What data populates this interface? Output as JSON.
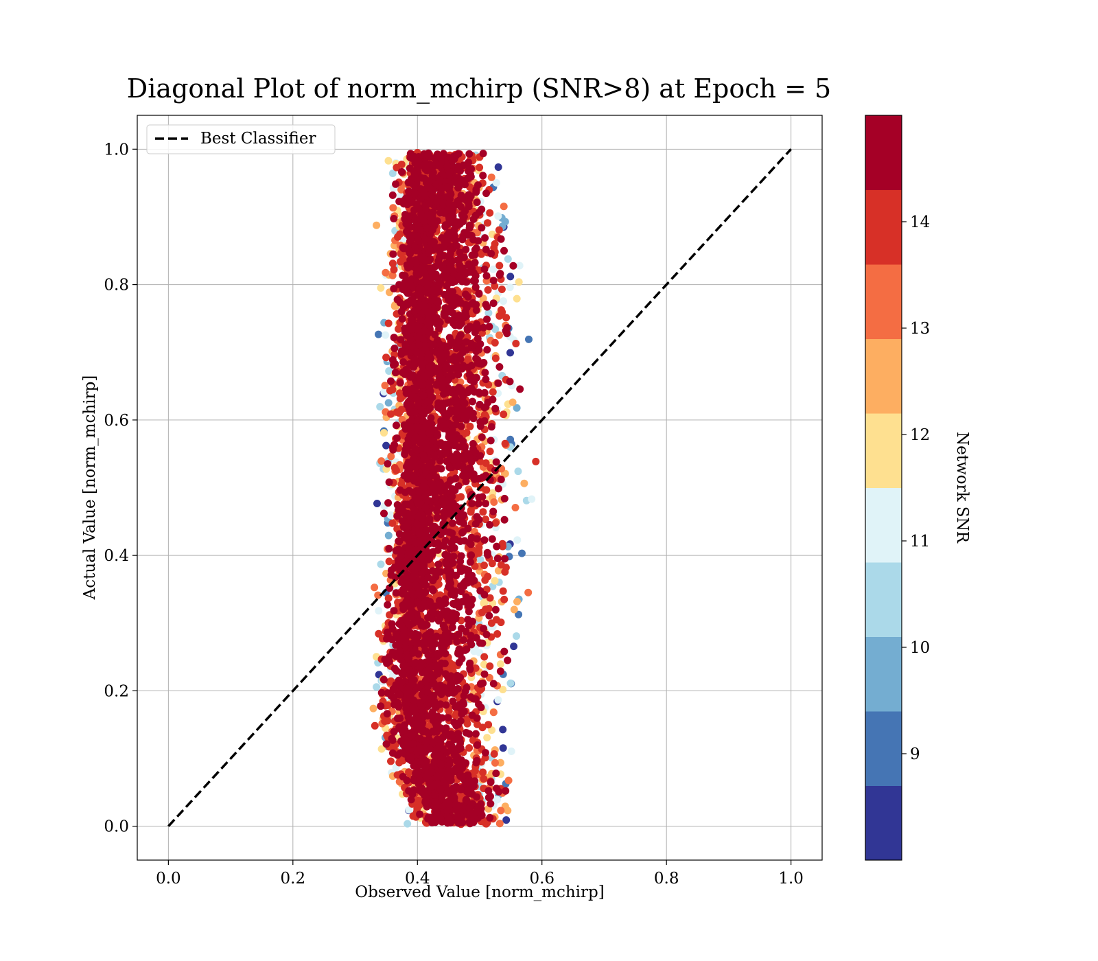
{
  "chart_data": {
    "type": "scatter",
    "title": "Diagonal Plot of norm_mchirp (SNR>8) at Epoch = 5",
    "xlabel": "Observed Value [norm_mchirp]",
    "ylabel": "Actual Value [norm_mchirp]",
    "xlim": [
      -0.05,
      1.05
    ],
    "ylim": [
      -0.05,
      1.05
    ],
    "xticks": [
      "0.0",
      "0.2",
      "0.4",
      "0.6",
      "0.8",
      "1.0"
    ],
    "yticks": [
      "0.0",
      "0.2",
      "0.4",
      "0.6",
      "0.8",
      "1.0"
    ],
    "grid": true,
    "legend": {
      "placement": "top-left",
      "entries": [
        {
          "label": "Best Classifier",
          "style": "dashed",
          "color": "#000000"
        }
      ]
    },
    "reference_line": {
      "name": "Best Classifier",
      "x": [
        0.0,
        1.0
      ],
      "y": [
        0.0,
        1.0
      ]
    },
    "colorbar": {
      "label": "Network SNR",
      "range": [
        8.0,
        15.0
      ],
      "ticks": [
        "9",
        "10",
        "11",
        "12",
        "13",
        "14"
      ],
      "colors": [
        "#313695",
        "#4575b4",
        "#74add1",
        "#abd9e9",
        "#e0f3f8",
        "#fee090",
        "#fdae61",
        "#f46d43",
        "#d73027",
        "#a50026"
      ]
    },
    "point_cloud": {
      "description_note": "dense cloud; sampled representative points",
      "y_values": [
        0.02,
        0.1,
        0.2,
        0.3,
        0.4,
        0.5,
        0.6,
        0.7,
        0.8,
        0.9,
        0.98
      ],
      "x_center": [
        0.46,
        0.42,
        0.4,
        0.405,
        0.41,
        0.415,
        0.418,
        0.42,
        0.422,
        0.425,
        0.43
      ],
      "x_min": [
        0.36,
        0.33,
        0.31,
        0.32,
        0.33,
        0.33,
        0.33,
        0.33,
        0.33,
        0.33,
        0.34
      ],
      "x_max": [
        0.56,
        0.57,
        0.58,
        0.6,
        0.6,
        0.61,
        0.6,
        0.6,
        0.6,
        0.57,
        0.54
      ]
    }
  }
}
